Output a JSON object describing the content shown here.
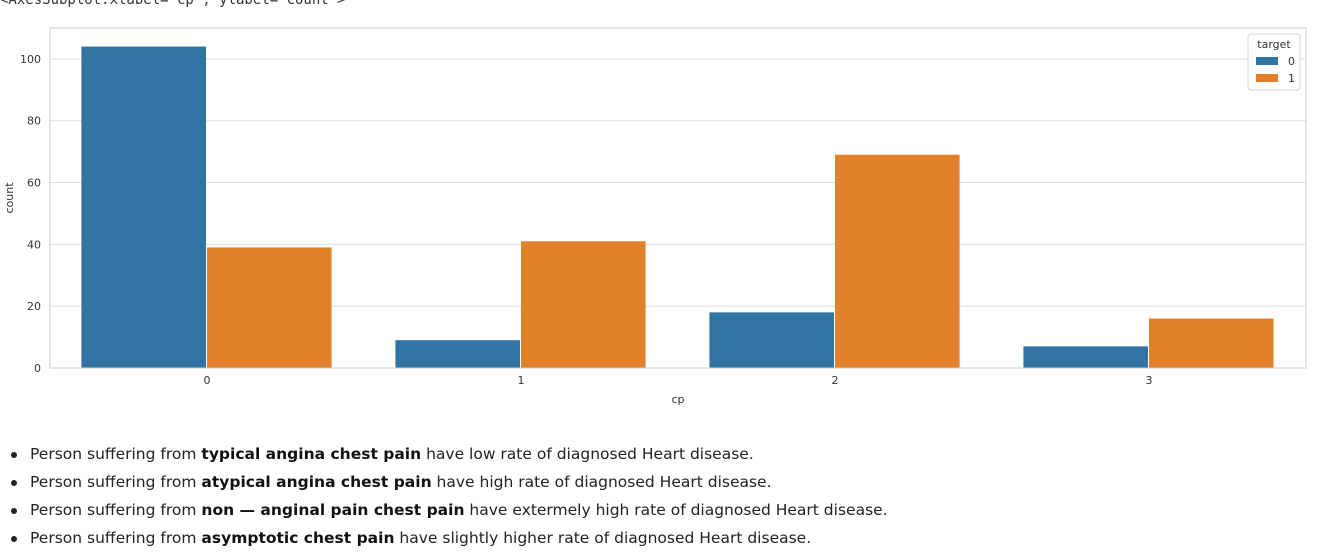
{
  "output_repr": "<AxesSubplot:xlabel='cp', ylabel='count'>",
  "colors": {
    "series_0": "#3274a1",
    "series_1": "#e1812c",
    "grid": "#dddddd",
    "frame": "#cfcfcf"
  },
  "chart_data": {
    "type": "bar",
    "categories": [
      "0",
      "1",
      "2",
      "3"
    ],
    "series": [
      {
        "name": "0",
        "values": [
          104,
          9,
          18,
          7
        ]
      },
      {
        "name": "1",
        "values": [
          39,
          41,
          69,
          16
        ]
      }
    ],
    "title": "",
    "xlabel": "cp",
    "ylabel": "count",
    "ylim": [
      0,
      110
    ],
    "yticks": [
      0,
      20,
      40,
      60,
      80,
      100
    ],
    "grid": true,
    "legend": {
      "title": "target",
      "placement": "top-right"
    }
  },
  "notes": [
    {
      "prefix": "Person suffering from ",
      "bold": "typical angina chest pain",
      "suffix": " have low rate of diagnosed Heart disease."
    },
    {
      "prefix": "Person suffering from ",
      "bold": "atypical angina chest pain",
      "suffix": " have high rate of diagnosed Heart disease."
    },
    {
      "prefix": "Person suffering from ",
      "bold": "non — anginal pain chest pain",
      "suffix": " have extermely high rate of diagnosed Heart disease."
    },
    {
      "prefix": "Person suffering from ",
      "bold": "asymptotic chest pain",
      "suffix": " have slightly higher rate of diagnosed Heart disease."
    }
  ]
}
